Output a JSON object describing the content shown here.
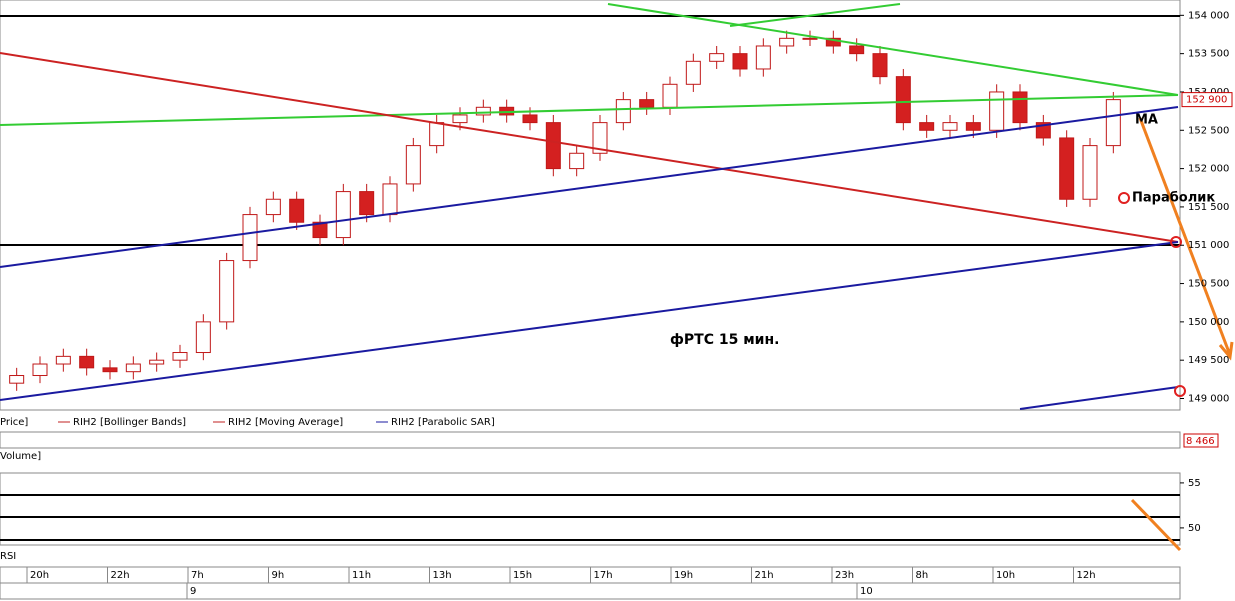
{
  "chart_data": {
    "type": "candlestick",
    "annotation": "фРТС   15 мин.",
    "ma_label": "МА",
    "parabolic_label": "Параболик",
    "legend": [
      "Price]",
      "RIH2 [Bollinger Bands]",
      "RIH2 [Moving Average]",
      "RIH2 [Parabolic SAR]"
    ],
    "volume_panel": "Volume]",
    "rsi_panel": "RSI",
    "last_price": {
      "value": 152900,
      "label": "152 900"
    },
    "volume_last": "8 466",
    "up_color": "#ffffff",
    "down_color": "#d42020",
    "edge_color": "#c01818",
    "ylim": [
      148850,
      154200
    ],
    "yticks": [
      {
        "value": 149000,
        "label": "149 000"
      },
      {
        "value": 149500,
        "label": "149 500"
      },
      {
        "value": 150000,
        "label": "150 000"
      },
      {
        "value": 150500,
        "label": "150 500"
      },
      {
        "value": 151000,
        "label": "151 000"
      },
      {
        "value": 151500,
        "label": "151 500"
      },
      {
        "value": 152000,
        "label": "152 000"
      },
      {
        "value": 152500,
        "label": "152 500"
      },
      {
        "value": 153000,
        "label": "153 000"
      },
      {
        "value": 153500,
        "label": "153 500"
      },
      {
        "value": 154000,
        "label": "154 000"
      }
    ],
    "rsi_ylim": [
      48.1,
      56.1
    ],
    "rsi_yticks": [
      50,
      55
    ],
    "time_labels": [
      "20h",
      "22h",
      "7h",
      "9h",
      "11h",
      "13h",
      "15h",
      "17h",
      "19h",
      "21h",
      "23h",
      "8h",
      "10h",
      "12h"
    ],
    "date_labels": [
      "9",
      "10"
    ],
    "open": [
      149200,
      149300,
      149450,
      149550,
      149400,
      149350,
      149450,
      149500,
      149600,
      150000,
      150800,
      151400,
      151600,
      151300,
      151100,
      151700,
      151400,
      151800,
      152300,
      152600,
      152700,
      152800,
      152700,
      152600,
      152000,
      152200,
      152600,
      152900,
      152800,
      153100,
      153400,
      153500,
      153300,
      153600,
      153700,
      153700,
      153600,
      153500,
      153200,
      152600,
      152500,
      152600,
      152500,
      153000,
      152600,
      152400,
      151600,
      152300
    ],
    "close": [
      149300,
      149450,
      149550,
      149400,
      149350,
      149450,
      149500,
      149600,
      150000,
      150800,
      151400,
      151600,
      151300,
      151100,
      151700,
      151400,
      151800,
      152300,
      152600,
      152700,
      152800,
      152700,
      152600,
      152000,
      152200,
      152600,
      152900,
      152800,
      153100,
      153400,
      153500,
      153300,
      153600,
      153700,
      153700,
      153600,
      153500,
      153200,
      152600,
      152500,
      152600,
      152500,
      153000,
      152600,
      152400,
      151600,
      152300,
      152900
    ],
    "high": [
      149400,
      149550,
      149650,
      149650,
      149500,
      149550,
      149600,
      149700,
      150100,
      150900,
      151500,
      151700,
      151700,
      151400,
      151800,
      151800,
      151900,
      152400,
      152700,
      152800,
      152900,
      152900,
      152800,
      152700,
      152300,
      152700,
      153000,
      153000,
      153200,
      153500,
      153600,
      153600,
      153700,
      153800,
      153800,
      153800,
      153700,
      153600,
      153300,
      152700,
      152700,
      152700,
      153100,
      153100,
      152700,
      152500,
      152400,
      153000
    ],
    "low": [
      149100,
      149200,
      149350,
      149300,
      149250,
      149250,
      149350,
      149400,
      149500,
      149900,
      150700,
      151300,
      151200,
      151000,
      151000,
      151300,
      151300,
      151700,
      152200,
      152500,
      152600,
      152600,
      152500,
      151900,
      151900,
      152100,
      152500,
      152700,
      152700,
      153000,
      153300,
      153200,
      153200,
      153500,
      153600,
      153500,
      153400,
      153100,
      152500,
      152400,
      152400,
      152400,
      152400,
      152500,
      152300,
      151500,
      151500,
      152200
    ]
  }
}
